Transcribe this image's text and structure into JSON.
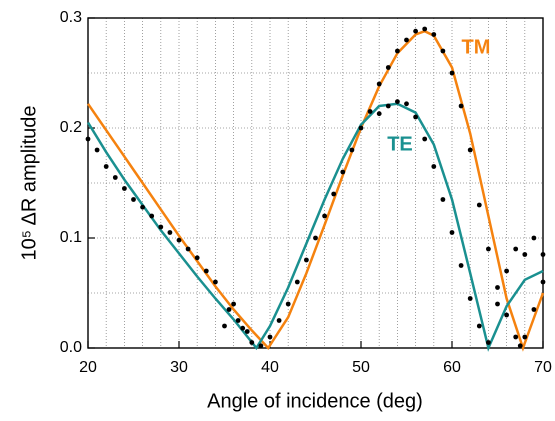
{
  "chart_data": {
    "type": "line",
    "x_label": "Angle of incidence (deg)",
    "y_label": "10⁵ ΔR amplitude",
    "xlim": [
      20,
      70
    ],
    "xticks": [
      20,
      30,
      40,
      50,
      60,
      70
    ],
    "ylim": [
      0,
      0.3
    ],
    "yticks": [
      {
        "value": 0,
        "label": "0.0"
      },
      0.1,
      0.2,
      0.3
    ],
    "xminorticks": [
      22,
      24,
      26,
      28,
      32,
      34,
      36,
      38,
      42,
      44,
      46,
      48,
      52,
      54,
      56,
      58,
      62,
      64,
      66,
      68
    ],
    "yminorticks": [
      0.05,
      0.15,
      0.25
    ],
    "grid": true,
    "series": [
      {
        "name": "TM",
        "color": "#f5820f",
        "kind": "line",
        "x": [
          20,
          22,
          24,
          26,
          28,
          30,
          32,
          34,
          36,
          38,
          39.8,
          42,
          44,
          46,
          48,
          50,
          52,
          54,
          56,
          57,
          58,
          60,
          62,
          64,
          66,
          67.8,
          70
        ],
        "values": [
          0.222,
          0.198,
          0.174,
          0.15,
          0.126,
          0.102,
          0.079,
          0.056,
          0.035,
          0.016,
          0.0,
          0.028,
          0.068,
          0.112,
          0.157,
          0.2,
          0.238,
          0.268,
          0.285,
          0.288,
          0.284,
          0.255,
          0.195,
          0.12,
          0.045,
          0.0,
          0.05
        ]
      },
      {
        "name": "TE",
        "color": "#1a9090",
        "kind": "line",
        "x": [
          20,
          22,
          24,
          26,
          28,
          30,
          32,
          34,
          36,
          38.5,
          40,
          42,
          44,
          46,
          48,
          50,
          52,
          54,
          56,
          58,
          60,
          62,
          64,
          66,
          68,
          70
        ],
        "values": [
          0.205,
          0.178,
          0.153,
          0.13,
          0.107,
          0.086,
          0.065,
          0.045,
          0.026,
          0.0,
          0.02,
          0.055,
          0.095,
          0.135,
          0.172,
          0.203,
          0.22,
          0.222,
          0.214,
          0.185,
          0.135,
          0.068,
          0.0,
          0.038,
          0.062,
          0.07
        ]
      },
      {
        "color": "#000000",
        "kind": "scatter",
        "x": [
          20,
          21,
          22,
          23,
          24,
          25,
          26,
          27,
          28,
          29,
          30,
          31,
          32,
          33,
          34,
          35,
          35.5,
          36,
          36.5,
          37,
          37.5,
          38,
          39,
          40,
          41,
          42,
          43,
          44,
          45,
          46,
          47,
          48,
          49,
          50,
          51,
          52,
          53,
          54,
          55,
          56,
          57,
          58,
          59,
          60,
          61,
          62,
          63,
          64,
          65,
          66,
          67,
          68,
          69,
          70,
          52,
          53,
          54,
          55,
          56,
          57,
          58,
          59,
          60,
          61,
          62,
          63,
          64,
          65,
          66,
          67,
          67.5,
          68,
          69,
          70
        ],
        "values": [
          0.19,
          0.18,
          0.165,
          0.155,
          0.145,
          0.135,
          0.128,
          0.12,
          0.11,
          0.105,
          0.098,
          0.09,
          0.082,
          0.07,
          0.06,
          0.02,
          0.035,
          0.04,
          0.025,
          0.018,
          0.015,
          0.005,
          0.002,
          0.01,
          0.025,
          0.04,
          0.06,
          0.08,
          0.1,
          0.12,
          0.14,
          0.16,
          0.18,
          0.2,
          0.215,
          0.213,
          0.22,
          0.224,
          0.222,
          0.21,
          0.19,
          0.165,
          0.135,
          0.105,
          0.075,
          0.045,
          0.02,
          0.005,
          0.04,
          0.07,
          0.09,
          0.085,
          0.1,
          0.085,
          0.24,
          0.255,
          0.27,
          0.28,
          0.288,
          0.29,
          0.285,
          0.27,
          0.25,
          0.22,
          0.18,
          0.13,
          0.09,
          0.055,
          0.03,
          0.01,
          0.002,
          0.01,
          0.035,
          0.06
        ]
      }
    ]
  }
}
